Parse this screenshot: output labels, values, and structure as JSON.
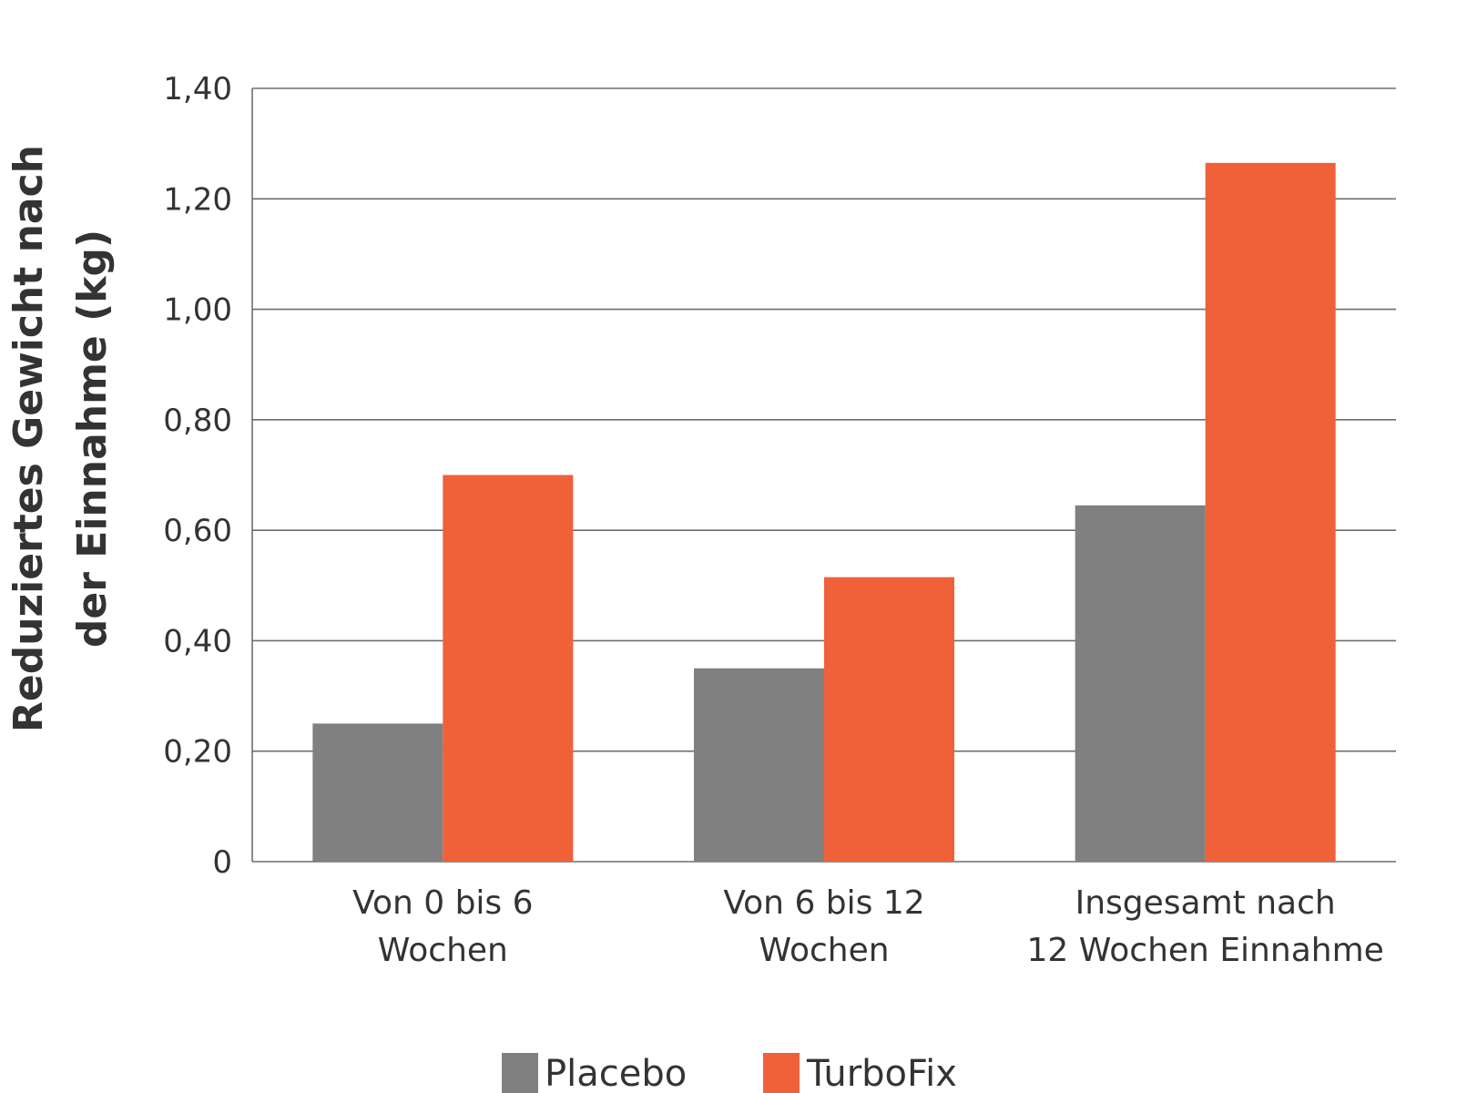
{
  "chart_data": {
    "type": "bar",
    "ylabel": [
      "Reduziertes Gewicht nach",
      "der Einnahme (kg)"
    ],
    "xlabel": "",
    "ylim": [
      0,
      1.4
    ],
    "yticks": [
      "0",
      "0,20",
      "0,40",
      "0,60",
      "0,80",
      "1,00",
      "1,20",
      "1,40"
    ],
    "categories": [
      [
        "Von 0 bis 6",
        "Wochen"
      ],
      [
        "Von 6 bis 12",
        "Wochen"
      ],
      [
        "Insgesamt nach",
        "12 Wochen Einnahme"
      ]
    ],
    "series": [
      {
        "name": "Placebo",
        "color": "#808080",
        "values": [
          0.25,
          0.35,
          0.645
        ]
      },
      {
        "name": "TurboFix",
        "color": "#f06039",
        "values": [
          0.7,
          0.515,
          1.265
        ]
      }
    ],
    "grid": true,
    "legend_position": "bottom-center"
  }
}
